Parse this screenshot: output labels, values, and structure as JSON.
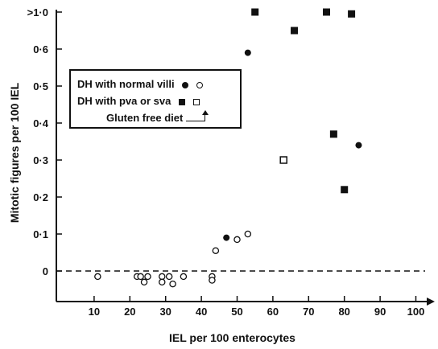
{
  "chart_data": {
    "type": "scatter",
    "xlabel": "IEL per 100 enterocytes",
    "ylabel": "Mitotic figures per 100 IEL",
    "x_ticks": [
      "10",
      "20",
      "30",
      "40",
      "50",
      "60",
      "70",
      "80",
      "90",
      "100"
    ],
    "y_ticks": [
      "0",
      "0·1",
      "0·2",
      "0·3",
      "0·4",
      "0·5",
      "0·6",
      ">1·0"
    ],
    "y_tick_values": [
      0,
      0.1,
      0.2,
      0.3,
      0.4,
      0.5,
      0.6,
      0.7
    ],
    "xlim": [
      0,
      105
    ],
    "ylim": [
      -0.12,
      0.7
    ],
    "y_break_note": "top tick labelled >1·0 groups all values above 1.0",
    "reference_line": {
      "y": 0,
      "style": "dashed"
    },
    "legend": {
      "entries": [
        {
          "label": "DH with normal villi",
          "symbols": [
            "filled-circle",
            "open-circle"
          ]
        },
        {
          "label": "DH with pva or sva",
          "symbols": [
            "filled-square",
            "open-square"
          ]
        },
        {
          "label": "Gluten free diet",
          "symbols": [
            "arrow"
          ]
        }
      ],
      "position": "upper-left"
    },
    "series": [
      {
        "name": "DH with normal villi",
        "marker": "filled-circle",
        "points": [
          [
            47,
            0.09
          ],
          [
            53,
            0.59
          ],
          [
            84,
            0.34
          ]
        ]
      },
      {
        "name": "DH with normal villi (gluten free diet)",
        "marker": "open-circle",
        "points": [
          [
            11,
            -0.015
          ],
          [
            22,
            -0.015
          ],
          [
            23,
            -0.015
          ],
          [
            24,
            -0.03
          ],
          [
            25,
            -0.015
          ],
          [
            29,
            -0.015
          ],
          [
            29,
            -0.03
          ],
          [
            31,
            -0.015
          ],
          [
            32,
            -0.035
          ],
          [
            35,
            -0.015
          ],
          [
            43,
            -0.015
          ],
          [
            43,
            -0.025
          ],
          [
            44,
            0.055
          ],
          [
            50,
            0.085
          ],
          [
            53,
            0.1
          ]
        ]
      },
      {
        "name": "DH with pva or sva",
        "marker": "filled-square",
        "points": [
          [
            55,
            0.7
          ],
          [
            66,
            0.65
          ],
          [
            75,
            0.7
          ],
          [
            77,
            0.37
          ],
          [
            80,
            0.22
          ],
          [
            82,
            0.695
          ]
        ]
      },
      {
        "name": "DH with pva or sva (gluten free diet)",
        "marker": "open-square",
        "points": [
          [
            63,
            0.3
          ]
        ]
      }
    ]
  }
}
